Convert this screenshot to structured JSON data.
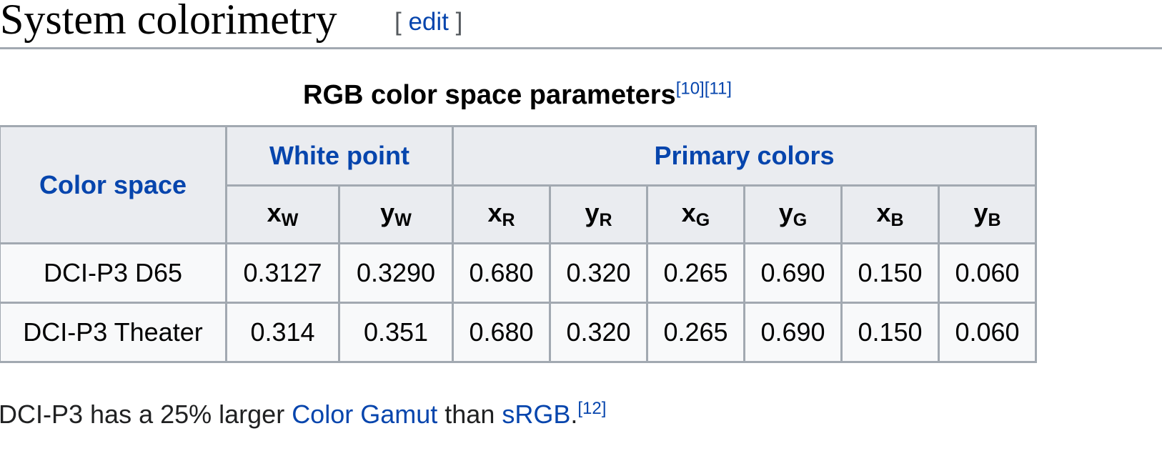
{
  "section": {
    "title": "System colorimetry",
    "edit_open": "[",
    "edit_label": "edit",
    "edit_close": "]"
  },
  "table": {
    "caption": "RGB color space parameters",
    "caption_refs": [
      "[10]",
      "[11]"
    ],
    "header": {
      "color_space": "Color space",
      "white_point": "White point",
      "primary_colors": "Primary colors"
    },
    "subheaders": [
      {
        "base": "x",
        "sub": "W"
      },
      {
        "base": "y",
        "sub": "W"
      },
      {
        "base": "x",
        "sub": "R"
      },
      {
        "base": "y",
        "sub": "R"
      },
      {
        "base": "x",
        "sub": "G"
      },
      {
        "base": "y",
        "sub": "G"
      },
      {
        "base": "x",
        "sub": "B"
      },
      {
        "base": "y",
        "sub": "B"
      }
    ],
    "rows": [
      {
        "name": "DCI-P3 D65",
        "values": [
          "0.3127",
          "0.3290",
          "0.680",
          "0.320",
          "0.265",
          "0.690",
          "0.150",
          "0.060"
        ]
      },
      {
        "name": "DCI-P3 Theater",
        "values": [
          "0.314",
          "0.351",
          "0.680",
          "0.320",
          "0.265",
          "0.690",
          "0.150",
          "0.060"
        ]
      }
    ]
  },
  "paragraph": {
    "text1": "DCI-P3 has a 25% larger ",
    "link1": "Color Gamut",
    "text2": " than ",
    "link2": "sRGB",
    "text3": ".",
    "ref": "[12]"
  },
  "colors": {
    "link": "#0645ad",
    "header_bg": "#eaecf0",
    "cell_bg": "#f8f9fa",
    "border": "#a2a9b1"
  }
}
